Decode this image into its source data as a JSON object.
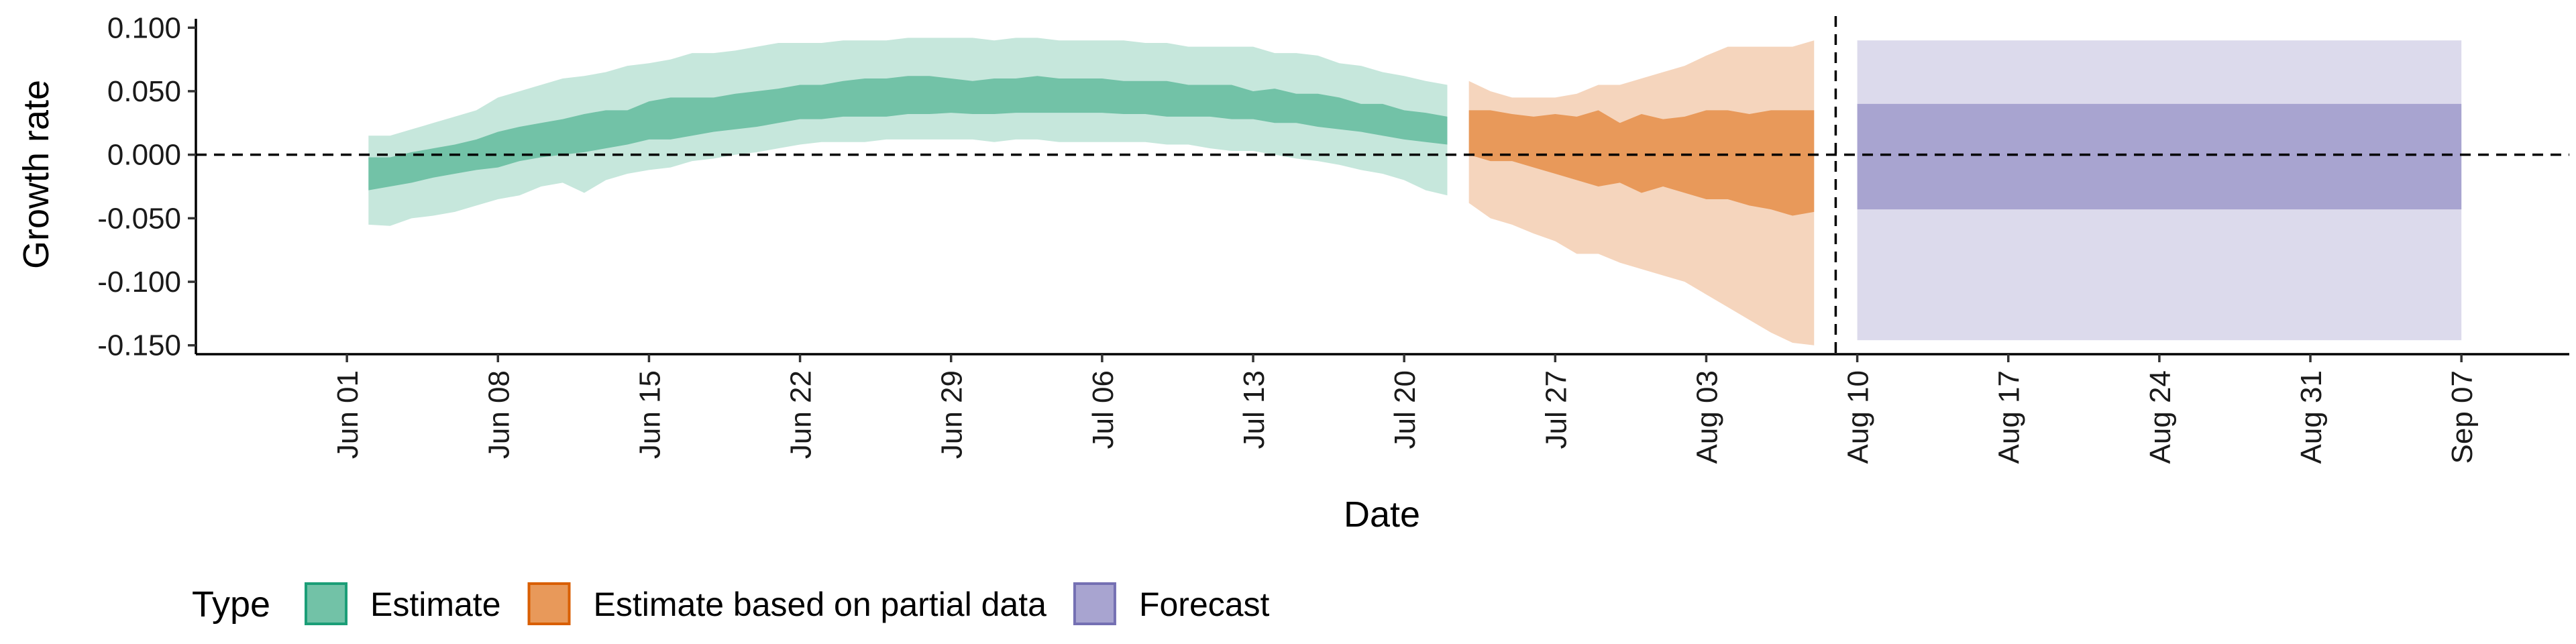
{
  "chart_data": {
    "type": "area",
    "xlabel": "Date",
    "ylabel": "Growth rate",
    "ylim": [
      -0.157,
      0.107
    ],
    "yticks": [
      {
        "value": 0.1,
        "label": "0.100"
      },
      {
        "value": 0.05,
        "label": "0.050"
      },
      {
        "value": 0.0,
        "label": "0.000"
      },
      {
        "value": -0.05,
        "label": "-0.050"
      },
      {
        "value": -0.1,
        "label": "-0.100"
      },
      {
        "value": -0.15,
        "label": "-0.150"
      }
    ],
    "xlim": [
      "2020-05-25",
      "2020-09-12"
    ],
    "xticks": [
      {
        "date": "2020-06-01",
        "label": "Jun 01"
      },
      {
        "date": "2020-06-08",
        "label": "Jun 08"
      },
      {
        "date": "2020-06-15",
        "label": "Jun 15"
      },
      {
        "date": "2020-06-22",
        "label": "Jun 22"
      },
      {
        "date": "2020-06-29",
        "label": "Jun 29"
      },
      {
        "date": "2020-07-06",
        "label": "Jul 06"
      },
      {
        "date": "2020-07-13",
        "label": "Jul 13"
      },
      {
        "date": "2020-07-20",
        "label": "Jul 20"
      },
      {
        "date": "2020-07-27",
        "label": "Jul 27"
      },
      {
        "date": "2020-08-03",
        "label": "Aug 03"
      },
      {
        "date": "2020-08-10",
        "label": "Aug 10"
      },
      {
        "date": "2020-08-17",
        "label": "Aug 17"
      },
      {
        "date": "2020-08-24",
        "label": "Aug 24"
      },
      {
        "date": "2020-08-31",
        "label": "Aug 31"
      },
      {
        "date": "2020-09-07",
        "label": "Sep 07"
      }
    ],
    "reference_lines": {
      "horizontal_y": 0.0,
      "vertical_date": "2020-08-09",
      "style": "dashed"
    },
    "grid": false,
    "legend": {
      "title": "Type",
      "placement": "bottom-left",
      "entries": [
        {
          "label": "Estimate",
          "fill": "#72c2a7",
          "border": "#1b9e77"
        },
        {
          "label": "Estimate based on partial data",
          "fill": "#e8995a",
          "border": "#d95f02"
        },
        {
          "label": "Forecast",
          "fill": "#a8a4d0",
          "border": "#7570b3"
        }
      ]
    },
    "series": [
      {
        "name": "Estimate",
        "inner_color": "#72c2a7",
        "outer_color": "#c6e7dc",
        "x": [
          "2020-06-02",
          "2020-06-03",
          "2020-06-04",
          "2020-06-05",
          "2020-06-06",
          "2020-06-07",
          "2020-06-08",
          "2020-06-09",
          "2020-06-10",
          "2020-06-11",
          "2020-06-12",
          "2020-06-13",
          "2020-06-14",
          "2020-06-15",
          "2020-06-16",
          "2020-06-17",
          "2020-06-18",
          "2020-06-19",
          "2020-06-20",
          "2020-06-21",
          "2020-06-22",
          "2020-06-23",
          "2020-06-24",
          "2020-06-25",
          "2020-06-26",
          "2020-06-27",
          "2020-06-28",
          "2020-06-29",
          "2020-06-30",
          "2020-07-01",
          "2020-07-02",
          "2020-07-03",
          "2020-07-04",
          "2020-07-05",
          "2020-07-06",
          "2020-07-07",
          "2020-07-08",
          "2020-07-09",
          "2020-07-10",
          "2020-07-11",
          "2020-07-12",
          "2020-07-13",
          "2020-07-14",
          "2020-07-15",
          "2020-07-16",
          "2020-07-17",
          "2020-07-18",
          "2020-07-19",
          "2020-07-20",
          "2020-07-21",
          "2020-07-22"
        ],
        "lower_90": [
          -0.055,
          -0.056,
          -0.05,
          -0.048,
          -0.045,
          -0.04,
          -0.035,
          -0.032,
          -0.025,
          -0.022,
          -0.03,
          -0.02,
          -0.015,
          -0.012,
          -0.01,
          -0.005,
          -0.003,
          0.0,
          0.002,
          0.005,
          0.008,
          0.01,
          0.01,
          0.01,
          0.012,
          0.012,
          0.012,
          0.012,
          0.012,
          0.01,
          0.012,
          0.012,
          0.01,
          0.01,
          0.01,
          0.01,
          0.01,
          0.008,
          0.008,
          0.005,
          0.003,
          0.003,
          0.0,
          -0.003,
          -0.005,
          -0.008,
          -0.012,
          -0.015,
          -0.02,
          -0.028,
          -0.032
        ],
        "lower_50": [
          -0.028,
          -0.025,
          -0.022,
          -0.018,
          -0.015,
          -0.012,
          -0.01,
          -0.005,
          -0.002,
          0.0,
          0.002,
          0.005,
          0.008,
          0.012,
          0.012,
          0.015,
          0.018,
          0.02,
          0.022,
          0.025,
          0.028,
          0.028,
          0.03,
          0.03,
          0.03,
          0.032,
          0.032,
          0.033,
          0.032,
          0.032,
          0.033,
          0.033,
          0.033,
          0.033,
          0.033,
          0.032,
          0.032,
          0.03,
          0.03,
          0.03,
          0.028,
          0.028,
          0.025,
          0.025,
          0.022,
          0.02,
          0.018,
          0.015,
          0.012,
          0.01,
          0.008
        ],
        "upper_50": [
          -0.002,
          -0.002,
          0.002,
          0.005,
          0.008,
          0.012,
          0.018,
          0.022,
          0.025,
          0.028,
          0.032,
          0.035,
          0.035,
          0.042,
          0.045,
          0.045,
          0.045,
          0.048,
          0.05,
          0.052,
          0.055,
          0.055,
          0.058,
          0.06,
          0.06,
          0.062,
          0.062,
          0.06,
          0.058,
          0.06,
          0.06,
          0.062,
          0.06,
          0.06,
          0.06,
          0.058,
          0.058,
          0.058,
          0.055,
          0.055,
          0.055,
          0.05,
          0.052,
          0.048,
          0.048,
          0.045,
          0.04,
          0.04,
          0.035,
          0.033,
          0.03
        ],
        "upper_90": [
          0.015,
          0.015,
          0.02,
          0.025,
          0.03,
          0.035,
          0.045,
          0.05,
          0.055,
          0.06,
          0.062,
          0.065,
          0.07,
          0.072,
          0.075,
          0.08,
          0.08,
          0.082,
          0.085,
          0.088,
          0.088,
          0.088,
          0.09,
          0.09,
          0.09,
          0.092,
          0.092,
          0.092,
          0.092,
          0.09,
          0.092,
          0.092,
          0.09,
          0.09,
          0.09,
          0.09,
          0.088,
          0.088,
          0.085,
          0.085,
          0.085,
          0.085,
          0.08,
          0.08,
          0.078,
          0.072,
          0.07,
          0.065,
          0.062,
          0.058,
          0.055
        ]
      },
      {
        "name": "Estimate based on partial data",
        "inner_color": "#e8995a",
        "outer_color": "#f5d5bd",
        "x": [
          "2020-07-23",
          "2020-07-24",
          "2020-07-25",
          "2020-07-26",
          "2020-07-27",
          "2020-07-28",
          "2020-07-29",
          "2020-07-30",
          "2020-07-31",
          "2020-08-01",
          "2020-08-02",
          "2020-08-03",
          "2020-08-04",
          "2020-08-05",
          "2020-08-06",
          "2020-08-07",
          "2020-08-08"
        ],
        "lower_90": [
          -0.038,
          -0.05,
          -0.055,
          -0.062,
          -0.068,
          -0.078,
          -0.078,
          -0.085,
          -0.09,
          -0.095,
          -0.1,
          -0.11,
          -0.12,
          -0.13,
          -0.14,
          -0.148,
          -0.15
        ],
        "lower_50": [
          0.0,
          -0.005,
          -0.005,
          -0.01,
          -0.015,
          -0.02,
          -0.025,
          -0.022,
          -0.03,
          -0.025,
          -0.03,
          -0.035,
          -0.035,
          -0.04,
          -0.043,
          -0.048,
          -0.045
        ],
        "upper_50": [
          0.035,
          0.035,
          0.032,
          0.03,
          0.032,
          0.03,
          0.035,
          0.025,
          0.032,
          0.028,
          0.03,
          0.035,
          0.035,
          0.032,
          0.035,
          0.035,
          0.035
        ],
        "upper_90": [
          0.058,
          0.05,
          0.045,
          0.045,
          0.045,
          0.048,
          0.055,
          0.055,
          0.06,
          0.065,
          0.07,
          0.078,
          0.085,
          0.085,
          0.085,
          0.085,
          0.09
        ]
      },
      {
        "name": "Forecast",
        "inner_color": "#a8a4d0",
        "outer_color": "#dcdaec",
        "x": [
          "2020-08-10",
          "2020-09-07"
        ],
        "lower_90": [
          -0.146,
          -0.146
        ],
        "lower_50": [
          -0.043,
          -0.043
        ],
        "upper_50": [
          0.04,
          0.04
        ],
        "upper_90": [
          0.09,
          0.09
        ]
      }
    ]
  }
}
